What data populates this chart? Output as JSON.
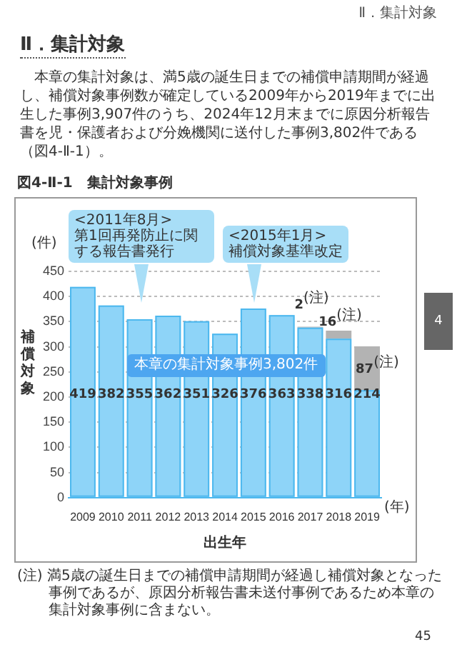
{
  "chart_data": {
    "type": "bar",
    "title": "図4-Ⅱ-1　集計対象事例",
    "xlabel": "出生年",
    "ylabel": "補償対象",
    "categories": [
      "2009",
      "2010",
      "2011",
      "2012",
      "2013",
      "2014",
      "2015",
      "2016",
      "2017",
      "2018",
      "2019"
    ],
    "stacked": true,
    "series": [
      {
        "color": "#8ed4f8",
        "values": [
          419,
          382,
          355,
          362,
          351,
          326,
          376,
          363,
          338,
          316,
          214
        ],
        "value_labels": [
          "419",
          "382",
          "355",
          "362",
          "351",
          "326",
          "376",
          "363",
          "338",
          "316",
          "214"
        ]
      },
      {
        "color": "#b3b3b3",
        "values": [
          null,
          null,
          null,
          null,
          null,
          null,
          null,
          null,
          2,
          16,
          87
        ],
        "value_labels": [
          null,
          null,
          null,
          null,
          null,
          null,
          null,
          null,
          "2$^{(注)}$",
          "16$^{(注)}$",
          "87$^{(注)}$"
        ]
      }
    ],
    "ylim": [
      0,
      450
    ],
    "yticks": [
      0,
      50,
      100,
      150,
      200,
      250,
      300,
      350,
      400,
      450
    ],
    "grid": "y",
    "annotations": [
      "Ⅱ．集計対象",
      "Ⅱ．集計対象",
      "本章の集計対象は、満5歳の誕生日までの補償申請期間が経過し、補償対象事例数が確定している2009年から2019年までに出生した事例3,907件のうち、2024年12月末までに原因分析報告書を児・保護者および分娩機関に送付した事例3,802件である（図4-Ⅱ-1）。",
      "(件)",
      "(年)",
      "<2011年8月>\n第1回再発防止に関する報告書発行",
      "<2015年1月>\n補償対象基準改定",
      "本章の集計対象事例3,802件",
      "(注) 満5歳の誕生日までの補償申請期間が経過し補償対象となった事例であるが、原因分析報告書未送付事例であるため本章の集計対象事例に含まない。",
      "45",
      "4"
    ]
  }
}
